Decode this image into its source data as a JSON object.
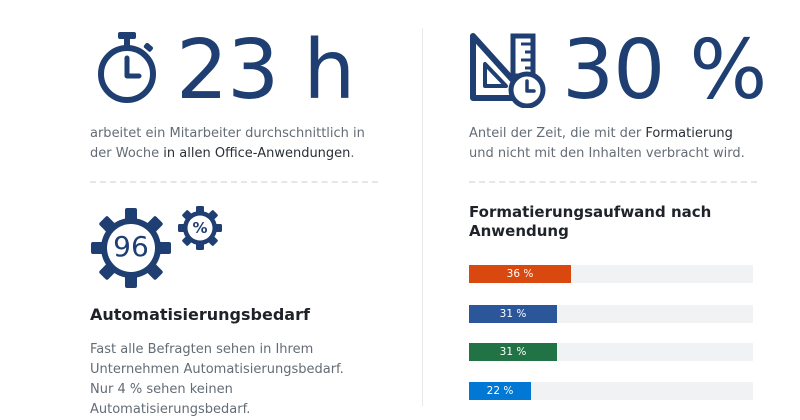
{
  "stat_hours": {
    "value": "23 h",
    "text_part1": "arbeitet ein Mitarbeiter durchschnittlich in der Woche ",
    "text_bold": "in allen Office-Anwendungen",
    "text_part2": "."
  },
  "stat_percent": {
    "value": "30 %",
    "text_part1": "Anteil der Zeit, die mit der ",
    "text_bold": "Formatierung",
    "text_part2": " und nicht mit den Inhalten verbracht wird."
  },
  "automation": {
    "gear_value": "96",
    "gear_small_symbol": "%",
    "title": "Automatisierungsbedarf",
    "text": "Fast alle Befragten sehen in Ihrem Unternehmen Automatisierungsbedarf. Nur 4 % sehen keinen Automatisierungsbedarf."
  },
  "chart_data": {
    "type": "bar",
    "title": "Formatierungsaufwand nach Anwendung",
    "values": [
      36,
      31,
      31,
      22
    ],
    "labels": [
      "36 %",
      "31 %",
      "31 %",
      "22 %"
    ],
    "colors": [
      "#d9480f",
      "#2b579a",
      "#217346",
      "#0078d4"
    ],
    "xlim": [
      0,
      100
    ]
  },
  "icons": [
    "stopwatch-icon",
    "ruler-triangle-clock-icon",
    "gear-96-icon",
    "gear-percent-icon"
  ]
}
